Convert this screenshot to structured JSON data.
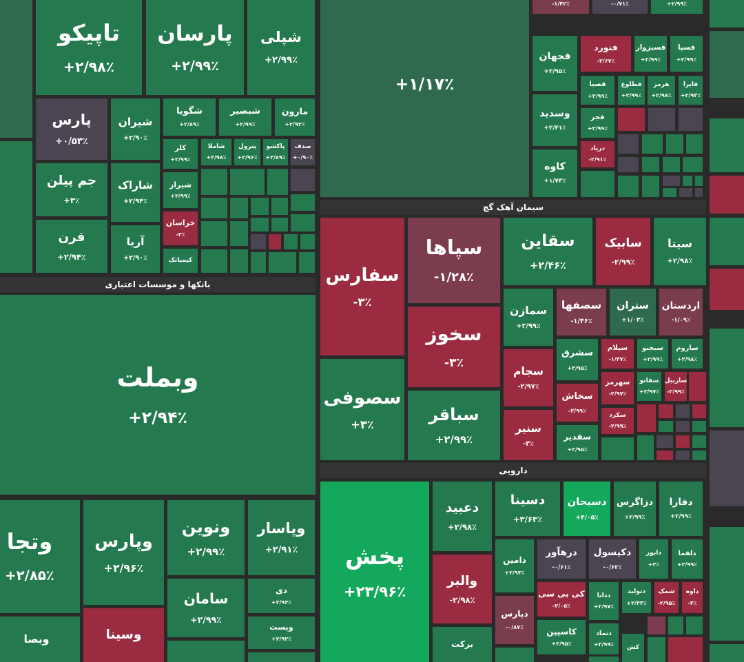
{
  "headers": [
    "بانکها و موسسات اعتباری",
    "سیمان آهک گچ",
    "دارویی"
  ],
  "tiles": [
    {
      "name": "تاپیکو",
      "change": "+۲/۹۸٪"
    },
    {
      "name": "پارسان",
      "change": "+۲/۹۹٪"
    },
    {
      "name": "شپلی",
      "change": "+۲/۹۹٪"
    },
    {
      "name": "پارس",
      "change": "+۰/۵۳٪"
    },
    {
      "name": "شیران",
      "change": "+۲/۹۰٪"
    },
    {
      "name": "شگویا",
      "change": "+۲/۸۹٪"
    },
    {
      "name": "شبصیر",
      "change": "+۲/۹۹٪"
    },
    {
      "name": "مارون",
      "change": "+۲/۹۳٪"
    },
    {
      "name": "کلر",
      "change": "+۲/۹۹٪"
    },
    {
      "name": "شاملا",
      "change": "+۲/۹۸٪"
    },
    {
      "name": "پترول",
      "change": "+۲/۹۶٪"
    },
    {
      "name": "پاکشو",
      "change": "+۲/۸۹٪"
    },
    {
      "name": "صدف",
      "change": "+۰/۹۰٪"
    },
    {
      "name": "جم پیلن",
      "change": "+۳٪"
    },
    {
      "name": "شاراک",
      "change": "+۲/۹۴٪"
    },
    {
      "name": "شیراز",
      "change": "+۲/۹۹٪"
    },
    {
      "name": "قرن",
      "change": "+۲/۹۴٪"
    },
    {
      "name": "آریا",
      "change": "+۲/۹۰٪"
    },
    {
      "name": "خراسان",
      "change": "-۳٪"
    },
    {
      "name": "کیمیاتک"
    },
    {
      "name": "وبملت",
      "change": "+۲/۹۴٪"
    },
    {
      "name": "وتجا",
      "change": "+۲/۸۵٪"
    },
    {
      "name": "وپارس",
      "change": "+۲/۹۶٪"
    },
    {
      "name": "ونوین",
      "change": "+۲/۹۹٪"
    },
    {
      "name": "وپاسار",
      "change": "+۲/۹۱٪"
    },
    {
      "name": "سامان",
      "change": "+۲/۹۹٪"
    },
    {
      "name": "دی",
      "change": "+۲/۹۳٪"
    },
    {
      "name": "وپست",
      "change": "+۲/۹۲٪"
    },
    {
      "name": "وسینا"
    },
    {
      "name": "وبصا"
    },
    {
      "change": "+۱/۱۷٪"
    },
    {
      "change": "-۱/۴۲٪"
    },
    {
      "change": "-۰/۷۱٪"
    },
    {
      "change": "+۲/۹۹٪"
    },
    {
      "name": "فجهان",
      "change": "+۲/۹۵٪"
    },
    {
      "name": "وسدید",
      "change": "+۲/۴۱٪"
    },
    {
      "name": "کاوه",
      "change": "+۱/۷۳٪"
    },
    {
      "name": "فنورد",
      "change": "-۲/۶۷٪"
    },
    {
      "name": "فسبزوار",
      "change": "+۲/۹۹٪"
    },
    {
      "name": "فسپا",
      "change": "+۲/۹۹٪"
    },
    {
      "name": "فصبا",
      "change": "+۲/۹۹٪"
    },
    {
      "name": "فطلوع",
      "change": "+۲/۹۹٪"
    },
    {
      "name": "هرمز",
      "change": "+۲/۹۸٪"
    },
    {
      "name": "فایرا",
      "change": "+۲/۹۴٪"
    },
    {
      "name": "فجر",
      "change": "+۲/۹۹٪"
    },
    {
      "name": "درپاد",
      "change": "-۲/۹۱٪"
    },
    {
      "name": "سفارس",
      "change": "-۳٪"
    },
    {
      "name": "سپاها",
      "change": "-۱/۲۸٪"
    },
    {
      "name": "سخوز",
      "change": "-۳٪"
    },
    {
      "name": "سصوفی",
      "change": "+۳٪"
    },
    {
      "name": "سباقر",
      "change": "+۲/۹۹٪"
    },
    {
      "name": "سقاین",
      "change": "+۲/۴۶٪"
    },
    {
      "name": "سابیک",
      "change": "-۲/۹۹٪"
    },
    {
      "name": "سیتا",
      "change": "+۲/۹۸٪"
    },
    {
      "name": "سمازن",
      "change": "+۲/۹۹٪"
    },
    {
      "name": "سصفها",
      "change": "-۱/۴۶٪"
    },
    {
      "name": "ستران",
      "change": "+۱/۰۳٪"
    },
    {
      "name": "اردستان",
      "change": "-۱/۰۹٪"
    },
    {
      "name": "سجام",
      "change": "-۲/۹۷٪"
    },
    {
      "name": "سشرق",
      "change": "+۲/۹۵٪"
    },
    {
      "name": "سیلام",
      "change": "-۱/۳۷٪"
    },
    {
      "name": "سبجنو",
      "change": "+۲/۹۹٪"
    },
    {
      "name": "ساروم",
      "change": "+۲/۹۸٪"
    },
    {
      "name": "سخاش",
      "change": "-۲/۹۹٪"
    },
    {
      "name": "سهرمز",
      "change": "-۲/۹۷٪"
    },
    {
      "name": "سفانو",
      "change": "+۲/۹۷٪"
    },
    {
      "name": "ساربیل",
      "change": "-۲/۹۹٪"
    },
    {
      "name": "سنیر",
      "change": "-۳٪"
    },
    {
      "name": "سکرد",
      "change": "-۲/۹۹٪"
    },
    {
      "name": "سفدیر",
      "change": "+۲/۹۵٪"
    },
    {
      "name": "پخش",
      "change": "+۲۳/۹۶٪"
    },
    {
      "name": "دعبید",
      "change": "+۲/۹۸٪"
    },
    {
      "name": "والبر",
      "change": "-۲/۹۸٪"
    },
    {
      "name": "برکت"
    },
    {
      "name": "دسینا",
      "change": "+۳/۶۳٪"
    },
    {
      "name": "دسبحان",
      "change": "+۴/۰۵٪"
    },
    {
      "name": "دزاگرس",
      "change": "+۲/۹۹٪"
    },
    {
      "name": "دفارا",
      "change": "+۲/۹۹٪"
    },
    {
      "name": "دامین",
      "change": "+۲/۹۳٪"
    },
    {
      "name": "درهآور",
      "change": "-۰/۶۱٪"
    },
    {
      "name": "دکپسول",
      "change": "-۰/۶۲٪"
    },
    {
      "name": "دابور",
      "change": "+۳٪"
    },
    {
      "name": "دلقما",
      "change": "+۲/۹۹٪"
    },
    {
      "name": "دپارس",
      "change": "-۰/۸۷٪"
    },
    {
      "name": "کی بی سی",
      "change": "-۲/۰۵٪"
    },
    {
      "name": "ددانا",
      "change": "+۲/۹۷٪"
    },
    {
      "name": "دتولید",
      "change": "+۲/۳۳٪"
    },
    {
      "name": "شمک",
      "change": "-۲/۹۵٪"
    },
    {
      "name": "داوه",
      "change": "-۳٪"
    },
    {
      "name": "کاسپین",
      "change": "+۲/۹۵٪"
    },
    {
      "name": "دتماد",
      "change": "+۲/۹۹٪"
    },
    {
      "name": "کش"
    }
  ]
}
